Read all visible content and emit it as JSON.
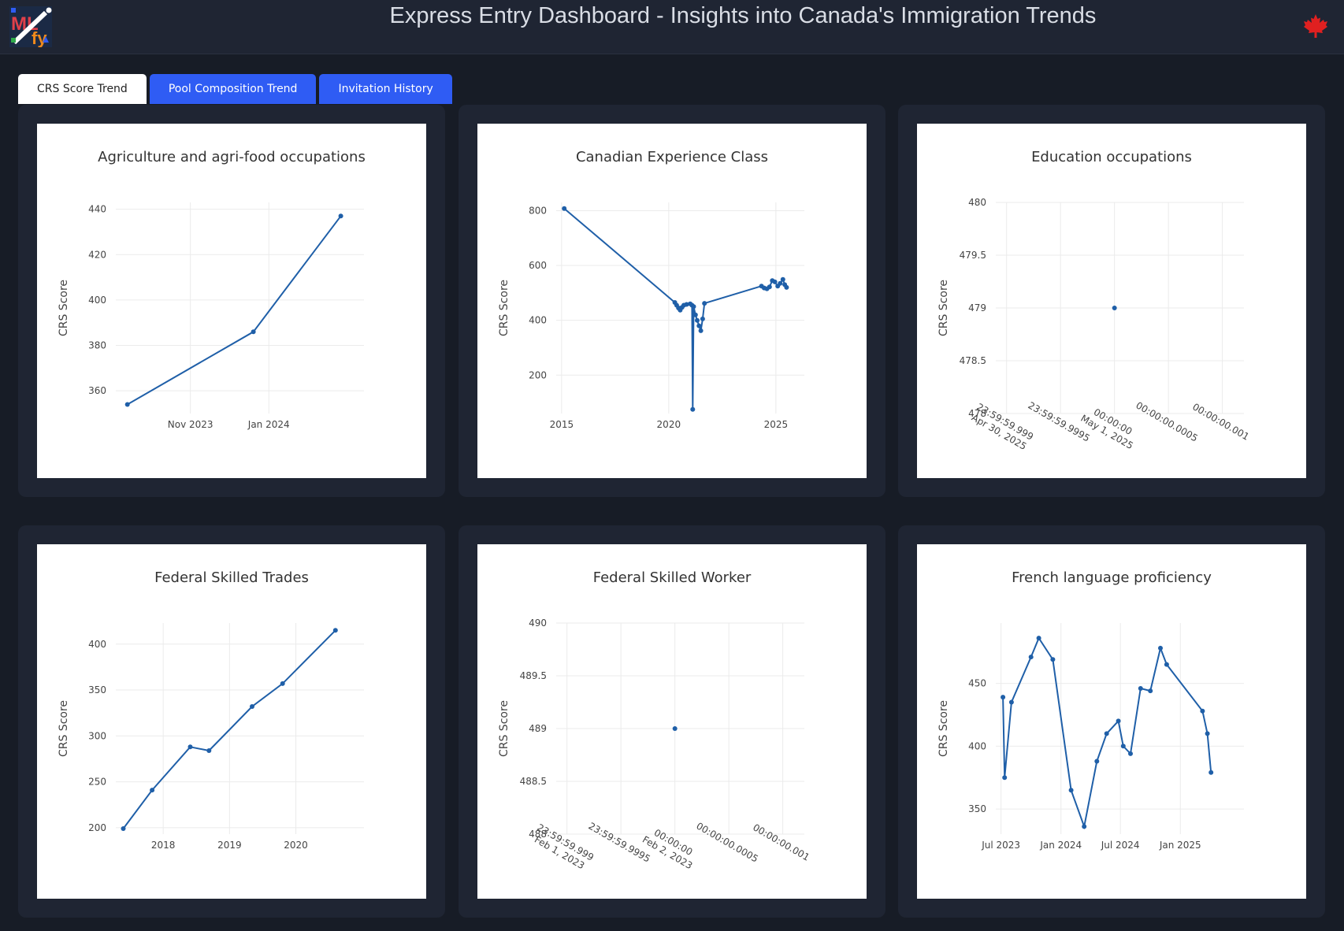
{
  "header": {
    "title": "Express Entry Dashboard - Insights into Canada's Immigration Trends",
    "logo_icon": "mlfy-logo-icon",
    "flag_icon": "maple-leaf-icon",
    "flag_color": "#e02020"
  },
  "tabs": [
    {
      "label": "CRS Score Trend",
      "active": true
    },
    {
      "label": "Pool Composition Trend",
      "active": false
    },
    {
      "label": "Invitation History",
      "active": false
    }
  ],
  "colors": {
    "line": "#1f5fa8",
    "tab_active_bg": "#ffffff",
    "tab_inactive_bg": "#2f5cf4",
    "card_bg": "#1f2533",
    "page_bg": "#171c26"
  },
  "chart_data": [
    {
      "type": "line",
      "title": "Agriculture and agri-food occupations",
      "ylabel": "CRS Score",
      "ylim": [
        350,
        443
      ],
      "xlim": [
        "2023-09-04",
        "2024-03-15"
      ],
      "yticks": [
        360,
        380,
        400,
        420,
        440
      ],
      "xticks": [
        {
          "label": "Nov 2023",
          "value": "2023-11-01"
        },
        {
          "label": "Jan 2024",
          "value": "2024-01-01"
        }
      ],
      "x": [
        "2023-09-13",
        "2023-12-20",
        "2024-02-26"
      ],
      "y": [
        354,
        386,
        437
      ]
    },
    {
      "type": "line",
      "title": "Canadian Experience Class",
      "ylabel": "CRS Score",
      "ylim": [
        60,
        830
      ],
      "xlim": [
        "2014-10-01",
        "2026-05-01"
      ],
      "yticks": [
        200,
        400,
        600,
        800
      ],
      "xticks": [
        {
          "label": "2015",
          "value": "2015-01-01"
        },
        {
          "label": "2020",
          "value": "2020-01-01"
        },
        {
          "label": "2025",
          "value": "2025-01-01"
        }
      ],
      "x": [
        "2015-02-15",
        "2020-04-15",
        "2020-05-15",
        "2020-06-15",
        "2020-07-15",
        "2020-08-15",
        "2020-09-15",
        "2020-11-01",
        "2021-01-01",
        "2021-02-01",
        "2021-02-13",
        "2021-03-01",
        "2021-04-01",
        "2021-05-01",
        "2021-06-01",
        "2021-07-01",
        "2021-08-01",
        "2021-09-01",
        "2024-05-01",
        "2024-06-15",
        "2024-08-01",
        "2024-09-15",
        "2024-11-01",
        "2024-12-15",
        "2025-02-01",
        "2025-03-15",
        "2025-05-01",
        "2025-06-01",
        "2025-07-01"
      ],
      "y": [
        808,
        465,
        455,
        445,
        437,
        447,
        455,
        458,
        460,
        455,
        75,
        450,
        420,
        400,
        380,
        362,
        405,
        462,
        525,
        518,
        515,
        522,
        545,
        540,
        525,
        535,
        549,
        530,
        520
      ]
    },
    {
      "type": "scatter",
      "title": "Education occupations",
      "ylabel": "CRS Score",
      "ylim": [
        478,
        480
      ],
      "yticks": [
        478,
        478.5,
        479,
        479.5,
        480
      ],
      "yticklabels": [
        "478",
        "478.5",
        "479",
        "479.5",
        "480"
      ],
      "xlim": [
        -0.0011,
        0.0012
      ],
      "xticks": [
        {
          "value": -0.001,
          "line1": "23:59:59.999",
          "line2": "Apr 30, 2025"
        },
        {
          "value": -0.0005,
          "line1": "23:59:59.9995",
          "line2": ""
        },
        {
          "value": 0,
          "line1": "00:00:00",
          "line2": "May 1, 2025"
        },
        {
          "value": 0.0005,
          "line1": "00:00:00.0005",
          "line2": ""
        },
        {
          "value": 0.001,
          "line1": "00:00:00.001",
          "line2": ""
        }
      ],
      "x": [
        0
      ],
      "y": [
        479
      ]
    },
    {
      "type": "line",
      "title": "Federal Skilled Trades",
      "ylabel": "CRS Score",
      "ylim": [
        193,
        423
      ],
      "xlim": [
        "2017-04-15",
        "2021-01-10"
      ],
      "yticks": [
        200,
        250,
        300,
        350,
        400
      ],
      "xticks": [
        {
          "label": "2018",
          "value": "2018-01-01"
        },
        {
          "label": "2019",
          "value": "2019-01-01"
        },
        {
          "label": "2020",
          "value": "2020-01-01"
        }
      ],
      "x": [
        "2017-05-26",
        "2017-11-01",
        "2018-05-30",
        "2018-09-10",
        "2019-05-05",
        "2019-10-20",
        "2020-08-06"
      ],
      "y": [
        199,
        241,
        288,
        284,
        332,
        357,
        415
      ]
    },
    {
      "type": "scatter",
      "title": "Federal Skilled Worker",
      "ylabel": "CRS Score",
      "ylim": [
        488,
        490
      ],
      "yticks": [
        488,
        488.5,
        489,
        489.5,
        490
      ],
      "yticklabels": [
        "488",
        "488.5",
        "489",
        "489.5",
        "490"
      ],
      "xlim": [
        -0.0011,
        0.0012
      ],
      "xticks": [
        {
          "value": -0.001,
          "line1": "23:59:59.999",
          "line2": "Feb 1, 2023"
        },
        {
          "value": -0.0005,
          "line1": "23:59:59.9995",
          "line2": ""
        },
        {
          "value": 0,
          "line1": "00:00:00",
          "line2": "Feb 2, 2023"
        },
        {
          "value": 0.0005,
          "line1": "00:00:00.0005",
          "line2": ""
        },
        {
          "value": 0.001,
          "line1": "00:00:00.001",
          "line2": ""
        }
      ],
      "x": [
        0
      ],
      "y": [
        489
      ]
    },
    {
      "type": "line",
      "title": "French language proficiency",
      "ylabel": "CRS Score",
      "ylim": [
        330,
        498
      ],
      "xlim": [
        "2023-06-15",
        "2025-07-15"
      ],
      "yticks": [
        350,
        400,
        450
      ],
      "xticks": [
        {
          "label": "Jul 2023",
          "value": "2023-07-01"
        },
        {
          "label": "Jan 2024",
          "value": "2024-01-01"
        },
        {
          "label": "Jul 2024",
          "value": "2024-07-01"
        },
        {
          "label": "Jan 2025",
          "value": "2025-01-01"
        }
      ],
      "x": [
        "2023-07-07",
        "2023-07-12",
        "2023-08-02",
        "2023-10-01",
        "2023-10-25",
        "2023-12-07",
        "2024-02-01",
        "2024-03-12",
        "2024-04-20",
        "2024-05-20",
        "2024-06-25",
        "2024-07-10",
        "2024-08-01",
        "2024-09-01",
        "2024-10-01",
        "2024-11-01",
        "2024-11-20",
        "2025-03-10",
        "2025-03-25",
        "2025-04-05"
      ],
      "y": [
        439,
        375,
        435,
        471,
        486,
        469,
        365,
        336,
        388,
        410,
        420,
        400,
        394,
        446,
        444,
        478,
        465,
        428,
        410,
        379
      ]
    }
  ]
}
